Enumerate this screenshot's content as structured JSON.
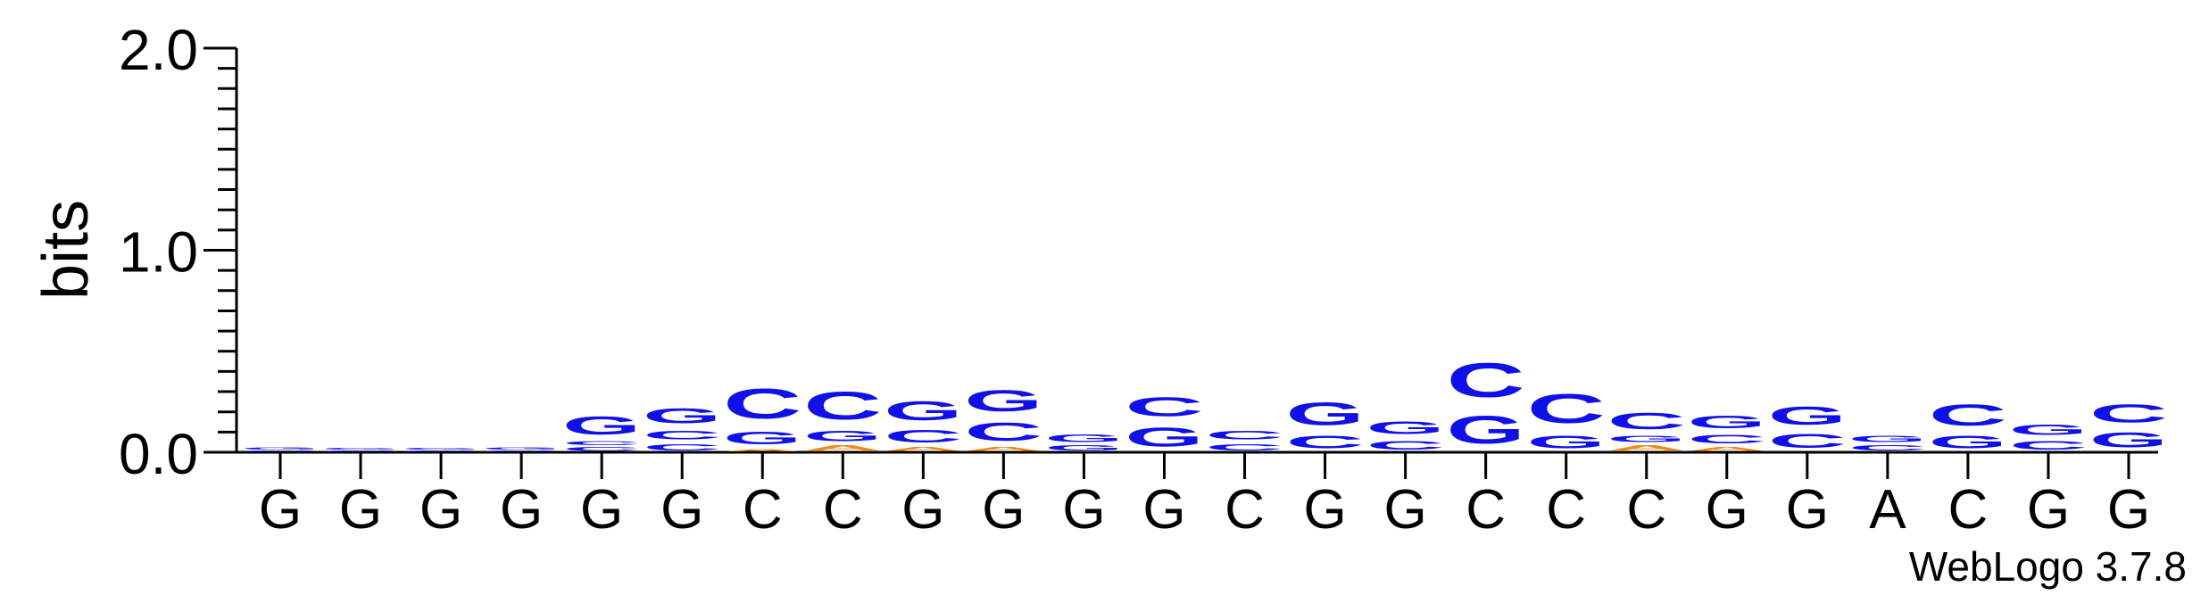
{
  "chart_data": {
    "type": "sequence_logo",
    "ylabel": "bits",
    "ylim": [
      0,
      2.0
    ],
    "yticks": [
      {
        "value": 0.0,
        "label": "0.0"
      },
      {
        "value": 1.0,
        "label": "1.0"
      },
      {
        "value": 2.0,
        "label": "2.0"
      }
    ],
    "xtick_labels": [
      "G",
      "G",
      "G",
      "G",
      "G",
      "G",
      "C",
      "C",
      "G",
      "G",
      "G",
      "G",
      "C",
      "G",
      "G",
      "C",
      "C",
      "C",
      "G",
      "G",
      "A",
      "C",
      "G",
      "G"
    ],
    "colors": {
      "G": "#1010e8",
      "C": "#1010e8",
      "A": "#f08a10",
      "T": "#f08a10"
    },
    "positions": [
      {
        "stack": [
          {
            "letter": "C",
            "bits": 0.01
          },
          {
            "letter": "G",
            "bits": 0.02
          }
        ]
      },
      {
        "stack": [
          {
            "letter": "C",
            "bits": 0.01
          },
          {
            "letter": "G",
            "bits": 0.015
          }
        ]
      },
      {
        "stack": [
          {
            "letter": "C",
            "bits": 0.01
          },
          {
            "letter": "G",
            "bits": 0.015
          }
        ]
      },
      {
        "stack": [
          {
            "letter": "C",
            "bits": 0.01
          },
          {
            "letter": "G",
            "bits": 0.02
          }
        ]
      },
      {
        "stack": [
          {
            "letter": "C",
            "bits": 0.03
          },
          {
            "letter": "C",
            "bits": 0.03
          },
          {
            "letter": "G",
            "bits": 0.14
          }
        ]
      },
      {
        "stack": [
          {
            "letter": "C",
            "bits": 0.05
          },
          {
            "letter": "C",
            "bits": 0.07
          },
          {
            "letter": "G",
            "bits": 0.12
          }
        ]
      },
      {
        "stack": [
          {
            "letter": "A",
            "bits": 0.02
          },
          {
            "letter": "G",
            "bits": 0.1
          },
          {
            "letter": "C",
            "bits": 0.24
          }
        ]
      },
      {
        "stack": [
          {
            "letter": "A",
            "bits": 0.04
          },
          {
            "letter": "G",
            "bits": 0.08
          },
          {
            "letter": "C",
            "bits": 0.22
          }
        ]
      },
      {
        "stack": [
          {
            "letter": "A",
            "bits": 0.03
          },
          {
            "letter": "C",
            "bits": 0.1
          },
          {
            "letter": "G",
            "bits": 0.15
          }
        ]
      },
      {
        "stack": [
          {
            "letter": "A",
            "bits": 0.03
          },
          {
            "letter": "C",
            "bits": 0.14
          },
          {
            "letter": "G",
            "bits": 0.17
          }
        ]
      },
      {
        "stack": [
          {
            "letter": "G",
            "bits": 0.04
          },
          {
            "letter": "G",
            "bits": 0.06
          }
        ]
      },
      {
        "stack": [
          {
            "letter": "G",
            "bits": 0.15
          },
          {
            "letter": "C",
            "bits": 0.15
          }
        ]
      },
      {
        "stack": [
          {
            "letter": "C",
            "bits": 0.05
          },
          {
            "letter": "C",
            "bits": 0.07
          }
        ]
      },
      {
        "stack": [
          {
            "letter": "C",
            "bits": 0.1
          },
          {
            "letter": "G",
            "bits": 0.18
          }
        ]
      },
      {
        "stack": [
          {
            "letter": "C",
            "bits": 0.07
          },
          {
            "letter": "G",
            "bits": 0.1
          }
        ]
      },
      {
        "stack": [
          {
            "letter": "G",
            "bits": 0.22
          },
          {
            "letter": "C",
            "bits": 0.27
          }
        ]
      },
      {
        "stack": [
          {
            "letter": "G",
            "bits": 0.1
          },
          {
            "letter": "C",
            "bits": 0.23
          }
        ]
      },
      {
        "stack": [
          {
            "letter": "A",
            "bits": 0.04
          },
          {
            "letter": "G",
            "bits": 0.05
          },
          {
            "letter": "C",
            "bits": 0.13
          }
        ]
      },
      {
        "stack": [
          {
            "letter": "A",
            "bits": 0.03
          },
          {
            "letter": "C",
            "bits": 0.07
          },
          {
            "letter": "G",
            "bits": 0.1
          }
        ]
      },
      {
        "stack": [
          {
            "letter": "C",
            "bits": 0.11
          },
          {
            "letter": "G",
            "bits": 0.14
          }
        ]
      },
      {
        "stack": [
          {
            "letter": "C",
            "bits": 0.04
          },
          {
            "letter": "G",
            "bits": 0.05
          }
        ]
      },
      {
        "stack": [
          {
            "letter": "G",
            "bits": 0.1
          },
          {
            "letter": "C",
            "bits": 0.17
          }
        ]
      },
      {
        "stack": [
          {
            "letter": "C",
            "bits": 0.07
          },
          {
            "letter": "G",
            "bits": 0.08
          }
        ]
      },
      {
        "stack": [
          {
            "letter": "G",
            "bits": 0.12
          },
          {
            "letter": "C",
            "bits": 0.14
          }
        ]
      }
    ],
    "footer": "WebLogo 3.7.8"
  }
}
